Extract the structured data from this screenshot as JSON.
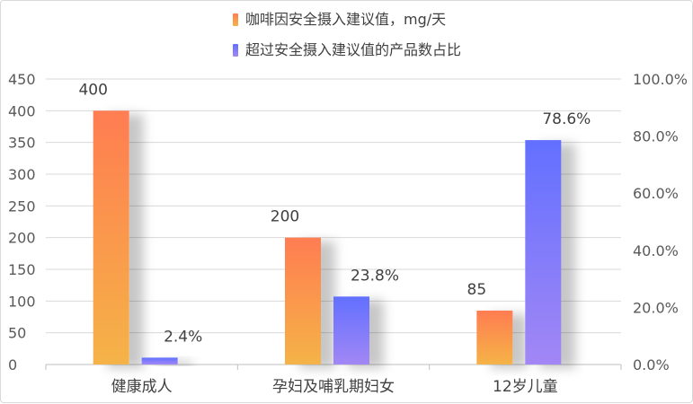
{
  "chart_data": {
    "type": "bar",
    "categories": [
      "健康成人",
      "孕妇及哺乳期妇女",
      "12岁儿童"
    ],
    "series": [
      {
        "name": "咖啡因安全摄入建议值，mg/天",
        "axis": "left",
        "values": [
          400,
          200,
          85
        ],
        "labels": [
          "400",
          "200",
          "85"
        ],
        "color_top": "#ff7d52",
        "color_bottom": "#f5b347"
      },
      {
        "name": "超过安全摄入建议值的产品数占比",
        "axis": "right",
        "values": [
          2.4,
          23.8,
          78.6
        ],
        "labels": [
          "2.4%",
          "23.8%",
          "78.6%"
        ],
        "color_top": "#6270ff",
        "color_bottom": "#a287f5"
      }
    ],
    "y_left": {
      "min": 0,
      "max": 450,
      "ticks": [
        0,
        50,
        100,
        150,
        200,
        250,
        300,
        350,
        400,
        450
      ],
      "tick_labels": [
        "0",
        "50",
        "100",
        "150",
        "200",
        "250",
        "300",
        "350",
        "400",
        "450"
      ]
    },
    "y_right": {
      "min": 0,
      "max": 100,
      "ticks": [
        0,
        20,
        40,
        60,
        80,
        100
      ],
      "tick_labels": [
        "0.0%",
        "20.0%",
        "40.0%",
        "60.0%",
        "80.0%",
        "100.0%"
      ]
    },
    "grid": true,
    "legend_position": "top-center",
    "colors": {
      "gridline": "#d9d9d9",
      "axis": "#bfbfbf",
      "text": "#404040",
      "tick_text": "#595959"
    }
  }
}
